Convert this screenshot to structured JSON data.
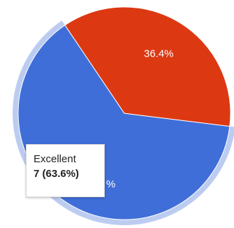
{
  "chart_data": {
    "type": "pie",
    "title": "",
    "slices": [
      {
        "label": "Excellent",
        "count": 7,
        "percent": 63.6,
        "color": "#3f6ed8"
      },
      {
        "label": "",
        "count": 4,
        "percent": 36.4,
        "color": "#dc3912",
        "data_label": "36.4%"
      }
    ],
    "highlighted_slice": "Excellent",
    "tooltip": {
      "name": "Excellent",
      "value_text": "7 (63.6%)"
    },
    "visible_label_fragment": "%"
  }
}
